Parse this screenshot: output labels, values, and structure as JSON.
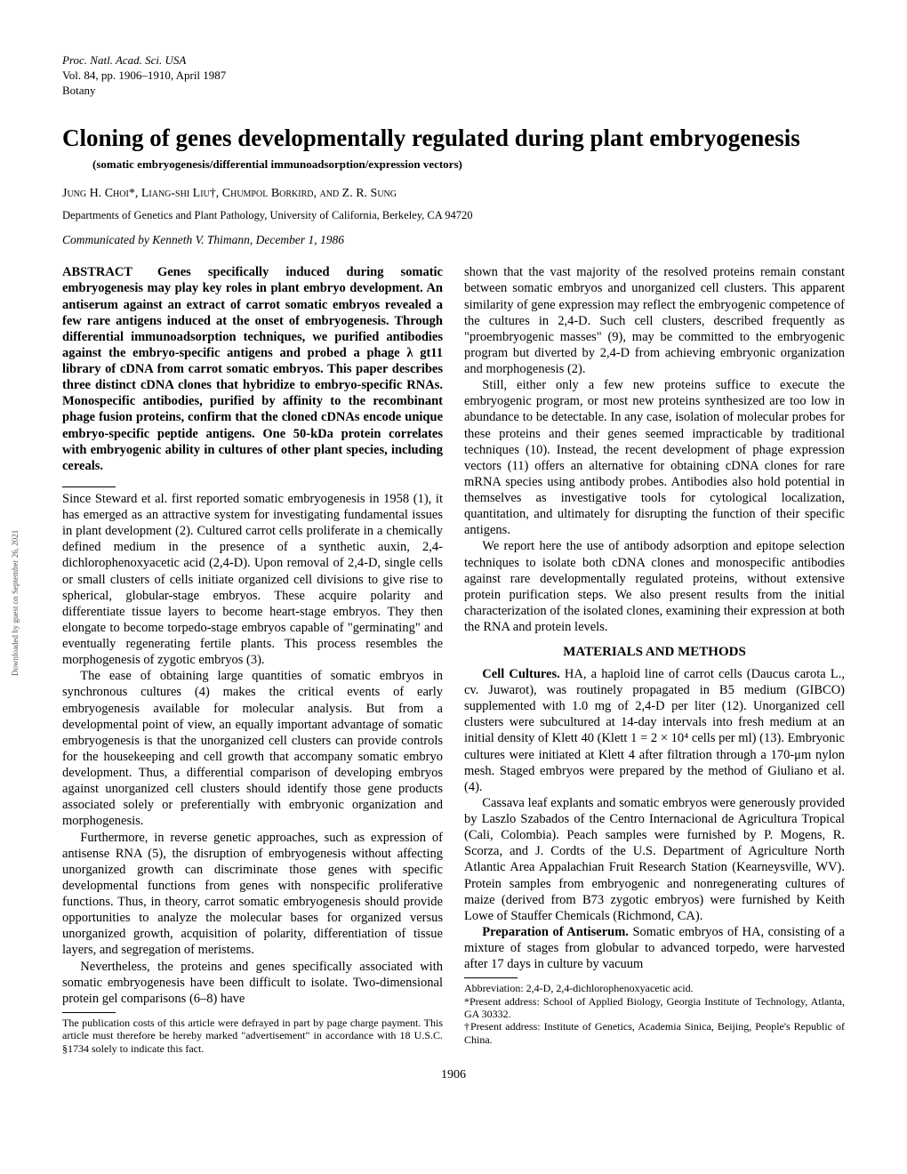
{
  "header": {
    "journal": "Proc. Natl. Acad. Sci. USA",
    "volume": "Vol. 84, pp. 1906–1910, April 1987",
    "section": "Botany"
  },
  "title": "Cloning of genes developmentally regulated during plant embryogenesis",
  "subtitle": "(somatic embryogenesis/differential immunoadsorption/expression vectors)",
  "authors": "Jung H. Choi*, Liang-shi Liu†, Chumpol Borkird, and Z. R. Sung",
  "affiliation": "Departments of Genetics and Plant Pathology, University of California, Berkeley, CA 94720",
  "communicated": "Communicated by Kenneth V. Thimann, December 1, 1986",
  "abstract": {
    "label": "ABSTRACT",
    "text": "Genes specifically induced during somatic embryogenesis may play key roles in plant embryo development. An antiserum against an extract of carrot somatic embryos revealed a few rare antigens induced at the onset of embryogenesis. Through differential immunoadsorption techniques, we purified antibodies against the embryo-specific antigens and probed a phage λ gt11 library of cDNA from carrot somatic embryos. This paper describes three distinct cDNA clones that hybridize to embryo-specific RNAs. Monospecific antibodies, purified by affinity to the recombinant phage fusion proteins, confirm that the cloned cDNAs encode unique embryo-specific peptide antigens. One 50-kDa protein correlates with embryogenic ability in cultures of other plant species, including cereals."
  },
  "intro": {
    "p1": "Since Steward et al. first reported somatic embryogenesis in 1958 (1), it has emerged as an attractive system for investigating fundamental issues in plant development (2). Cultured carrot cells proliferate in a chemically defined medium in the presence of a synthetic auxin, 2,4-dichlorophenoxyacetic acid (2,4-D). Upon removal of 2,4-D, single cells or small clusters of cells initiate organized cell divisions to give rise to spherical, globular-stage embryos. These acquire polarity and differentiate tissue layers to become heart-stage embryos. They then elongate to become torpedo-stage embryos capable of \"germinating\" and eventually regenerating fertile plants. This process resembles the morphogenesis of zygotic embryos (3).",
    "p2": "The ease of obtaining large quantities of somatic embryos in synchronous cultures (4) makes the critical events of early embryogenesis available for molecular analysis. But from a developmental point of view, an equally important advantage of somatic embryogenesis is that the unorganized cell clusters can provide controls for the housekeeping and cell growth that accompany somatic embryo development. Thus, a differential comparison of developing embryos against unorganized cell clusters should identify those gene products associated solely or preferentially with embryonic organization and morphogenesis.",
    "p3": "Furthermore, in reverse genetic approaches, such as expression of antisense RNA (5), the disruption of embryogenesis without affecting unorganized growth can discriminate those genes with specific developmental functions from genes with nonspecific proliferative functions. Thus, in theory, carrot somatic embryogenesis should provide opportunities to analyze the molecular bases for organized versus unorganized growth, acquisition of polarity, differentiation of tissue layers, and segregation of meristems.",
    "p4": "Nevertheless, the proteins and genes specifically associated with somatic embryogenesis have been difficult to isolate. Two-dimensional protein gel comparisons (6–8) have",
    "p5": "shown that the vast majority of the resolved proteins remain constant between somatic embryos and unorganized cell clusters. This apparent similarity of gene expression may reflect the embryogenic competence of the cultures in 2,4-D. Such cell clusters, described frequently as \"proembryogenic masses\" (9), may be committed to the embryogenic program but diverted by 2,4-D from achieving embryonic organization and morphogenesis (2).",
    "p6": "Still, either only a few new proteins suffice to execute the embryogenic program, or most new proteins synthesized are too low in abundance to be detectable. In any case, isolation of molecular probes for these proteins and their genes seemed impracticable by traditional techniques (10). Instead, the recent development of phage expression vectors (11) offers an alternative for obtaining cDNA clones for rare mRNA species using antibody probes. Antibodies also hold potential in themselves as investigative tools for cytological localization, quantitation, and ultimately for disrupting the function of their specific antigens.",
    "p7": "We report here the use of antibody adsorption and epitope selection techniques to isolate both cDNA clones and monospecific antibodies against rare developmentally regulated proteins, without extensive protein purification steps. We also present results from the initial characterization of the isolated clones, examining their expression at both the RNA and protein levels."
  },
  "methods": {
    "heading": "MATERIALS AND METHODS",
    "p1_label": "Cell Cultures.",
    "p1": " HA, a haploid line of carrot cells (Daucus carota L., cv. Juwarot), was routinely propagated in B5 medium (GIBCO) supplemented with 1.0 mg of 2,4-D per liter (12). Unorganized cell clusters were subcultured at 14-day intervals into fresh medium at an initial density of Klett 40 (Klett 1 = 2 × 10⁴ cells per ml) (13). Embryonic cultures were initiated at Klett 4 after filtration through a 170-μm nylon mesh. Staged embryos were prepared by the method of Giuliano et al. (4).",
    "p2": "Cassava leaf explants and somatic embryos were generously provided by Laszlo Szabados of the Centro Internacional de Agricultura Tropical (Cali, Colombia). Peach samples were furnished by P. Mogens, R. Scorza, and J. Cordts of the U.S. Department of Agriculture North Atlantic Area Appalachian Fruit Research Station (Kearneysville, WV). Protein samples from embryogenic and nonregenerating cultures of maize (derived from B73 zygotic embryos) were furnished by Keith Lowe of Stauffer Chemicals (Richmond, CA).",
    "p3_label": "Preparation of Antiserum.",
    "p3": " Somatic embryos of HA, consisting of a mixture of stages from globular to advanced torpedo, were harvested after 17 days in culture by vacuum"
  },
  "footnotes": {
    "left": "The publication costs of this article were defrayed in part by page charge payment. This article must therefore be hereby marked \"advertisement\" in accordance with 18 U.S.C. §1734 solely to indicate this fact.",
    "right1": "Abbreviation: 2,4-D, 2,4-dichlorophenoxyacetic acid.",
    "right2": "*Present address: School of Applied Biology, Georgia Institute of Technology, Atlanta, GA 30332.",
    "right3": "†Present address: Institute of Genetics, Academia Sinica, Beijing, People's Republic of China."
  },
  "page_number": "1906",
  "side_text": "Downloaded by guest on September 26, 2021"
}
